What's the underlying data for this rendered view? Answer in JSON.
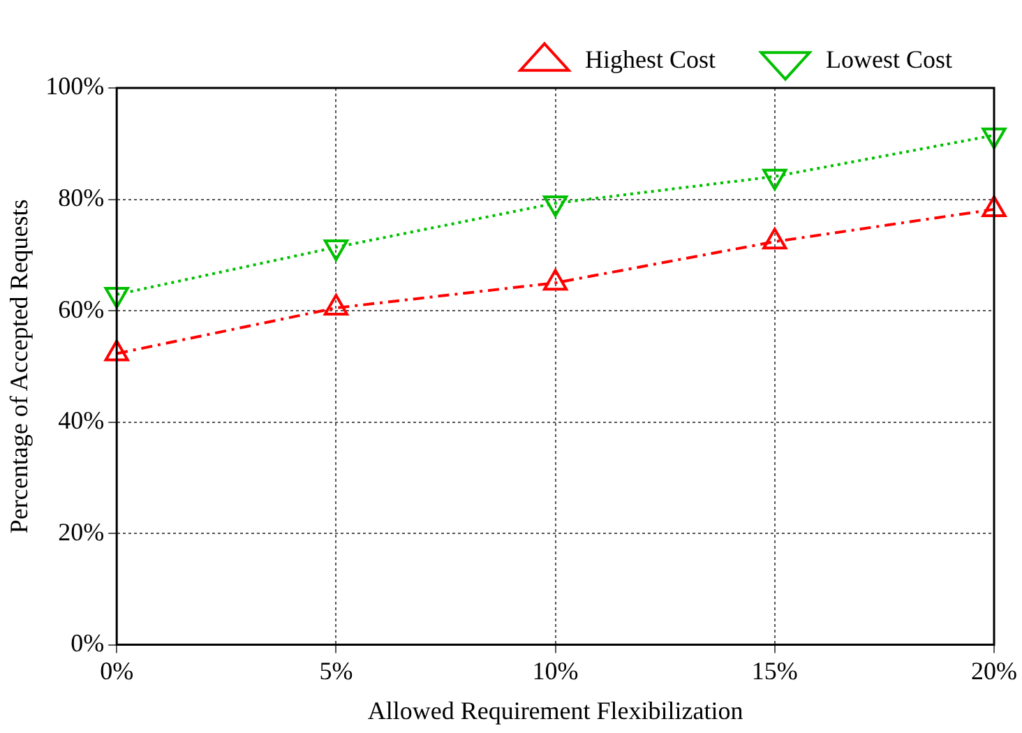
{
  "chart_data": {
    "type": "line",
    "xlabel": "Allowed Requirement Flexibilization",
    "ylabel": "Percentage of Accepted Requests",
    "categories": [
      "0%",
      "5%",
      "10%",
      "15%",
      "20%"
    ],
    "series": [
      {
        "name": "Highest Cost",
        "color": "#ff0000",
        "marker": "triangle",
        "line_style": "dashed",
        "values": [
          52.3,
          60.5,
          65,
          72.4,
          78.2
        ]
      },
      {
        "name": "Lowest Cost",
        "color": "#00c000",
        "marker": "triangle-down",
        "line_style": "dotted",
        "values": [
          62.9,
          71.4,
          79.3,
          84.1,
          91.5
        ]
      }
    ],
    "ylim": [
      0,
      100
    ],
    "yticks": [
      {
        "value": 0,
        "label": "0%"
      },
      {
        "value": 20,
        "label": "20%"
      },
      {
        "value": 40,
        "label": "40%"
      },
      {
        "value": 60,
        "label": "60%"
      },
      {
        "value": 80,
        "label": "80%"
      },
      {
        "value": 100,
        "label": "100%"
      }
    ],
    "grid": true,
    "legend": "top right"
  }
}
